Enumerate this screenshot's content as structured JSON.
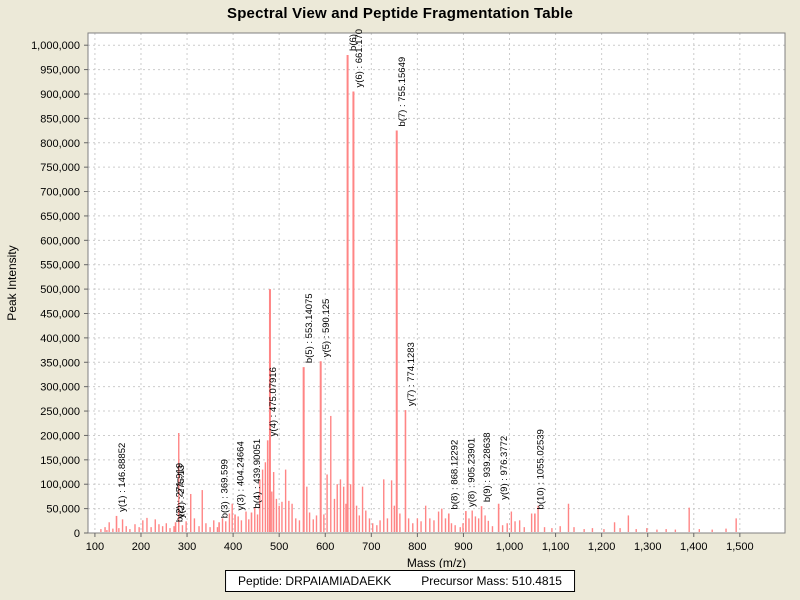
{
  "title": "Spectral View and Peptide Fragmentation Table",
  "footer": {
    "peptide_label": "Peptide: DRPAIAMIADAEKK",
    "precursor_label": "Precursor Mass: 510.4815"
  },
  "chart_data": {
    "type": "bar",
    "title": "Spectral View and Peptide Fragmentation Table",
    "xlabel": "Mass (m/z)",
    "ylabel": "Peak Intensity",
    "xlim": [
      85,
      1598
    ],
    "ylim": [
      0,
      1025000
    ],
    "x_tick_start": 100,
    "x_tick_end": 1500,
    "x_tick_step": 100,
    "y_tick_max": 1000000,
    "y_tick_step": 50000,
    "grid": "dashed",
    "legend": "none",
    "colors": {
      "peak": "#ff8585",
      "grid": "#cccccc",
      "plot_border": "#808080",
      "plot_bg": "#ffffff",
      "page_bg": "#ece9d8",
      "label_text": "#000000"
    },
    "labeled_peaks": [
      {
        "label": "y(1) : 146.88852",
        "mz": 146.89,
        "intensity": 35000
      },
      {
        "label": "b(2) : 271.919",
        "mz": 271.92,
        "intensity": 14000
      },
      {
        "label": "y(2) : 275.13",
        "mz": 275.13,
        "intensity": 22000
      },
      {
        "label": "b(3) : 369.599",
        "mz": 369.6,
        "intensity": 22000
      },
      {
        "label": "y(3) : 404.24664",
        "mz": 404.25,
        "intensity": 38000
      },
      {
        "label": "b(4) : 439.90051",
        "mz": 439.9,
        "intensity": 42000
      },
      {
        "label": "y(4) : 475.07916",
        "mz": 475.08,
        "intensity": 190000
      },
      {
        "label": "b(5) : 553.14075",
        "mz": 553.14,
        "intensity": 340000
      },
      {
        "label": "y(5) : 590.125",
        "mz": 590.13,
        "intensity": 352000
      },
      {
        "label": "b(6)",
        "mz": 648.5,
        "intensity": 980000
      },
      {
        "label": "y(6) : 661.170",
        "mz": 661.17,
        "intensity": 905000
      },
      {
        "label": "b(7) : 755.15649",
        "mz": 755.16,
        "intensity": 825000
      },
      {
        "label": "y(7) : 774.1283",
        "mz": 774.13,
        "intensity": 252000
      },
      {
        "label": "b(8) : 868.12292",
        "mz": 868.12,
        "intensity": 40000
      },
      {
        "label": "y(8) : 905.23901",
        "mz": 905.24,
        "intensity": 45000
      },
      {
        "label": "b(9) : 939.28638",
        "mz": 939.29,
        "intensity": 55000
      },
      {
        "label": "y(9) : 976.3772",
        "mz": 976.38,
        "intensity": 60000
      },
      {
        "label": "b(10) : 1055.02539",
        "mz": 1055.03,
        "intensity": 40000
      }
    ],
    "unlabeled_peaks": [
      [
        113,
        8000
      ],
      [
        122,
        12000
      ],
      [
        126,
        6000
      ],
      [
        131,
        22000
      ],
      [
        139,
        9000
      ],
      [
        152,
        10000
      ],
      [
        160,
        28000
      ],
      [
        168,
        14000
      ],
      [
        176,
        8000
      ],
      [
        187,
        18000
      ],
      [
        196,
        12000
      ],
      [
        204,
        26000
      ],
      [
        213,
        31000
      ],
      [
        222,
        12000
      ],
      [
        231,
        28000
      ],
      [
        239,
        18000
      ],
      [
        247,
        14000
      ],
      [
        255,
        20000
      ],
      [
        263,
        10000
      ],
      [
        282,
        205000
      ],
      [
        290,
        16000
      ],
      [
        298,
        24000
      ],
      [
        308,
        80000
      ],
      [
        316,
        30000
      ],
      [
        326,
        14000
      ],
      [
        333,
        88000
      ],
      [
        341,
        20000
      ],
      [
        350,
        12000
      ],
      [
        358,
        26000
      ],
      [
        366,
        12000
      ],
      [
        377,
        30000
      ],
      [
        384,
        24000
      ],
      [
        392,
        40000
      ],
      [
        398,
        60000
      ],
      [
        411,
        34000
      ],
      [
        418,
        26000
      ],
      [
        428,
        44000
      ],
      [
        434,
        28000
      ],
      [
        447,
        52000
      ],
      [
        453,
        38000
      ],
      [
        458,
        110000
      ],
      [
        464,
        130000
      ],
      [
        470,
        145000
      ],
      [
        480,
        500000
      ],
      [
        484,
        85000
      ],
      [
        488,
        125000
      ],
      [
        494,
        70000
      ],
      [
        500,
        56000
      ],
      [
        506,
        64000
      ],
      [
        514,
        130000
      ],
      [
        521,
        66000
      ],
      [
        528,
        60000
      ],
      [
        536,
        30000
      ],
      [
        544,
        26000
      ],
      [
        560,
        95000
      ],
      [
        566,
        42000
      ],
      [
        574,
        28000
      ],
      [
        581,
        36000
      ],
      [
        597,
        38000
      ],
      [
        604,
        120000
      ],
      [
        612,
        240000
      ],
      [
        620,
        70000
      ],
      [
        626,
        100000
      ],
      [
        633,
        110000
      ],
      [
        640,
        95000
      ],
      [
        645,
        60000
      ],
      [
        655,
        100000
      ],
      [
        668,
        56000
      ],
      [
        674,
        36000
      ],
      [
        681,
        95000
      ],
      [
        688,
        46000
      ],
      [
        696,
        30000
      ],
      [
        703,
        20000
      ],
      [
        712,
        16000
      ],
      [
        719,
        26000
      ],
      [
        727,
        110000
      ],
      [
        735,
        30000
      ],
      [
        744,
        108000
      ],
      [
        750,
        56000
      ],
      [
        762,
        40000
      ],
      [
        781,
        30000
      ],
      [
        790,
        20000
      ],
      [
        800,
        30000
      ],
      [
        808,
        24000
      ],
      [
        818,
        56000
      ],
      [
        827,
        30000
      ],
      [
        836,
        26000
      ],
      [
        846,
        44000
      ],
      [
        853,
        50000
      ],
      [
        861,
        30000
      ],
      [
        874,
        20000
      ],
      [
        882,
        16000
      ],
      [
        893,
        12000
      ],
      [
        899,
        20000
      ],
      [
        912,
        30000
      ],
      [
        919,
        46000
      ],
      [
        926,
        34000
      ],
      [
        933,
        30000
      ],
      [
        947,
        36000
      ],
      [
        954,
        25000
      ],
      [
        963,
        14000
      ],
      [
        985,
        16000
      ],
      [
        995,
        20000
      ],
      [
        1004,
        44000
      ],
      [
        1012,
        24000
      ],
      [
        1022,
        26000
      ],
      [
        1032,
        12000
      ],
      [
        1048,
        40000
      ],
      [
        1062,
        56000
      ],
      [
        1076,
        12000
      ],
      [
        1092,
        10000
      ],
      [
        1110,
        14000
      ],
      [
        1128,
        60000
      ],
      [
        1140,
        12000
      ],
      [
        1162,
        8000
      ],
      [
        1180,
        10000
      ],
      [
        1205,
        8000
      ],
      [
        1228,
        22000
      ],
      [
        1240,
        10000
      ],
      [
        1258,
        36000
      ],
      [
        1275,
        8000
      ],
      [
        1298,
        10000
      ],
      [
        1320,
        7000
      ],
      [
        1340,
        8000
      ],
      [
        1360,
        7000
      ],
      [
        1390,
        52000
      ],
      [
        1412,
        8000
      ],
      [
        1440,
        7000
      ],
      [
        1470,
        9000
      ],
      [
        1492,
        30000
      ]
    ]
  }
}
